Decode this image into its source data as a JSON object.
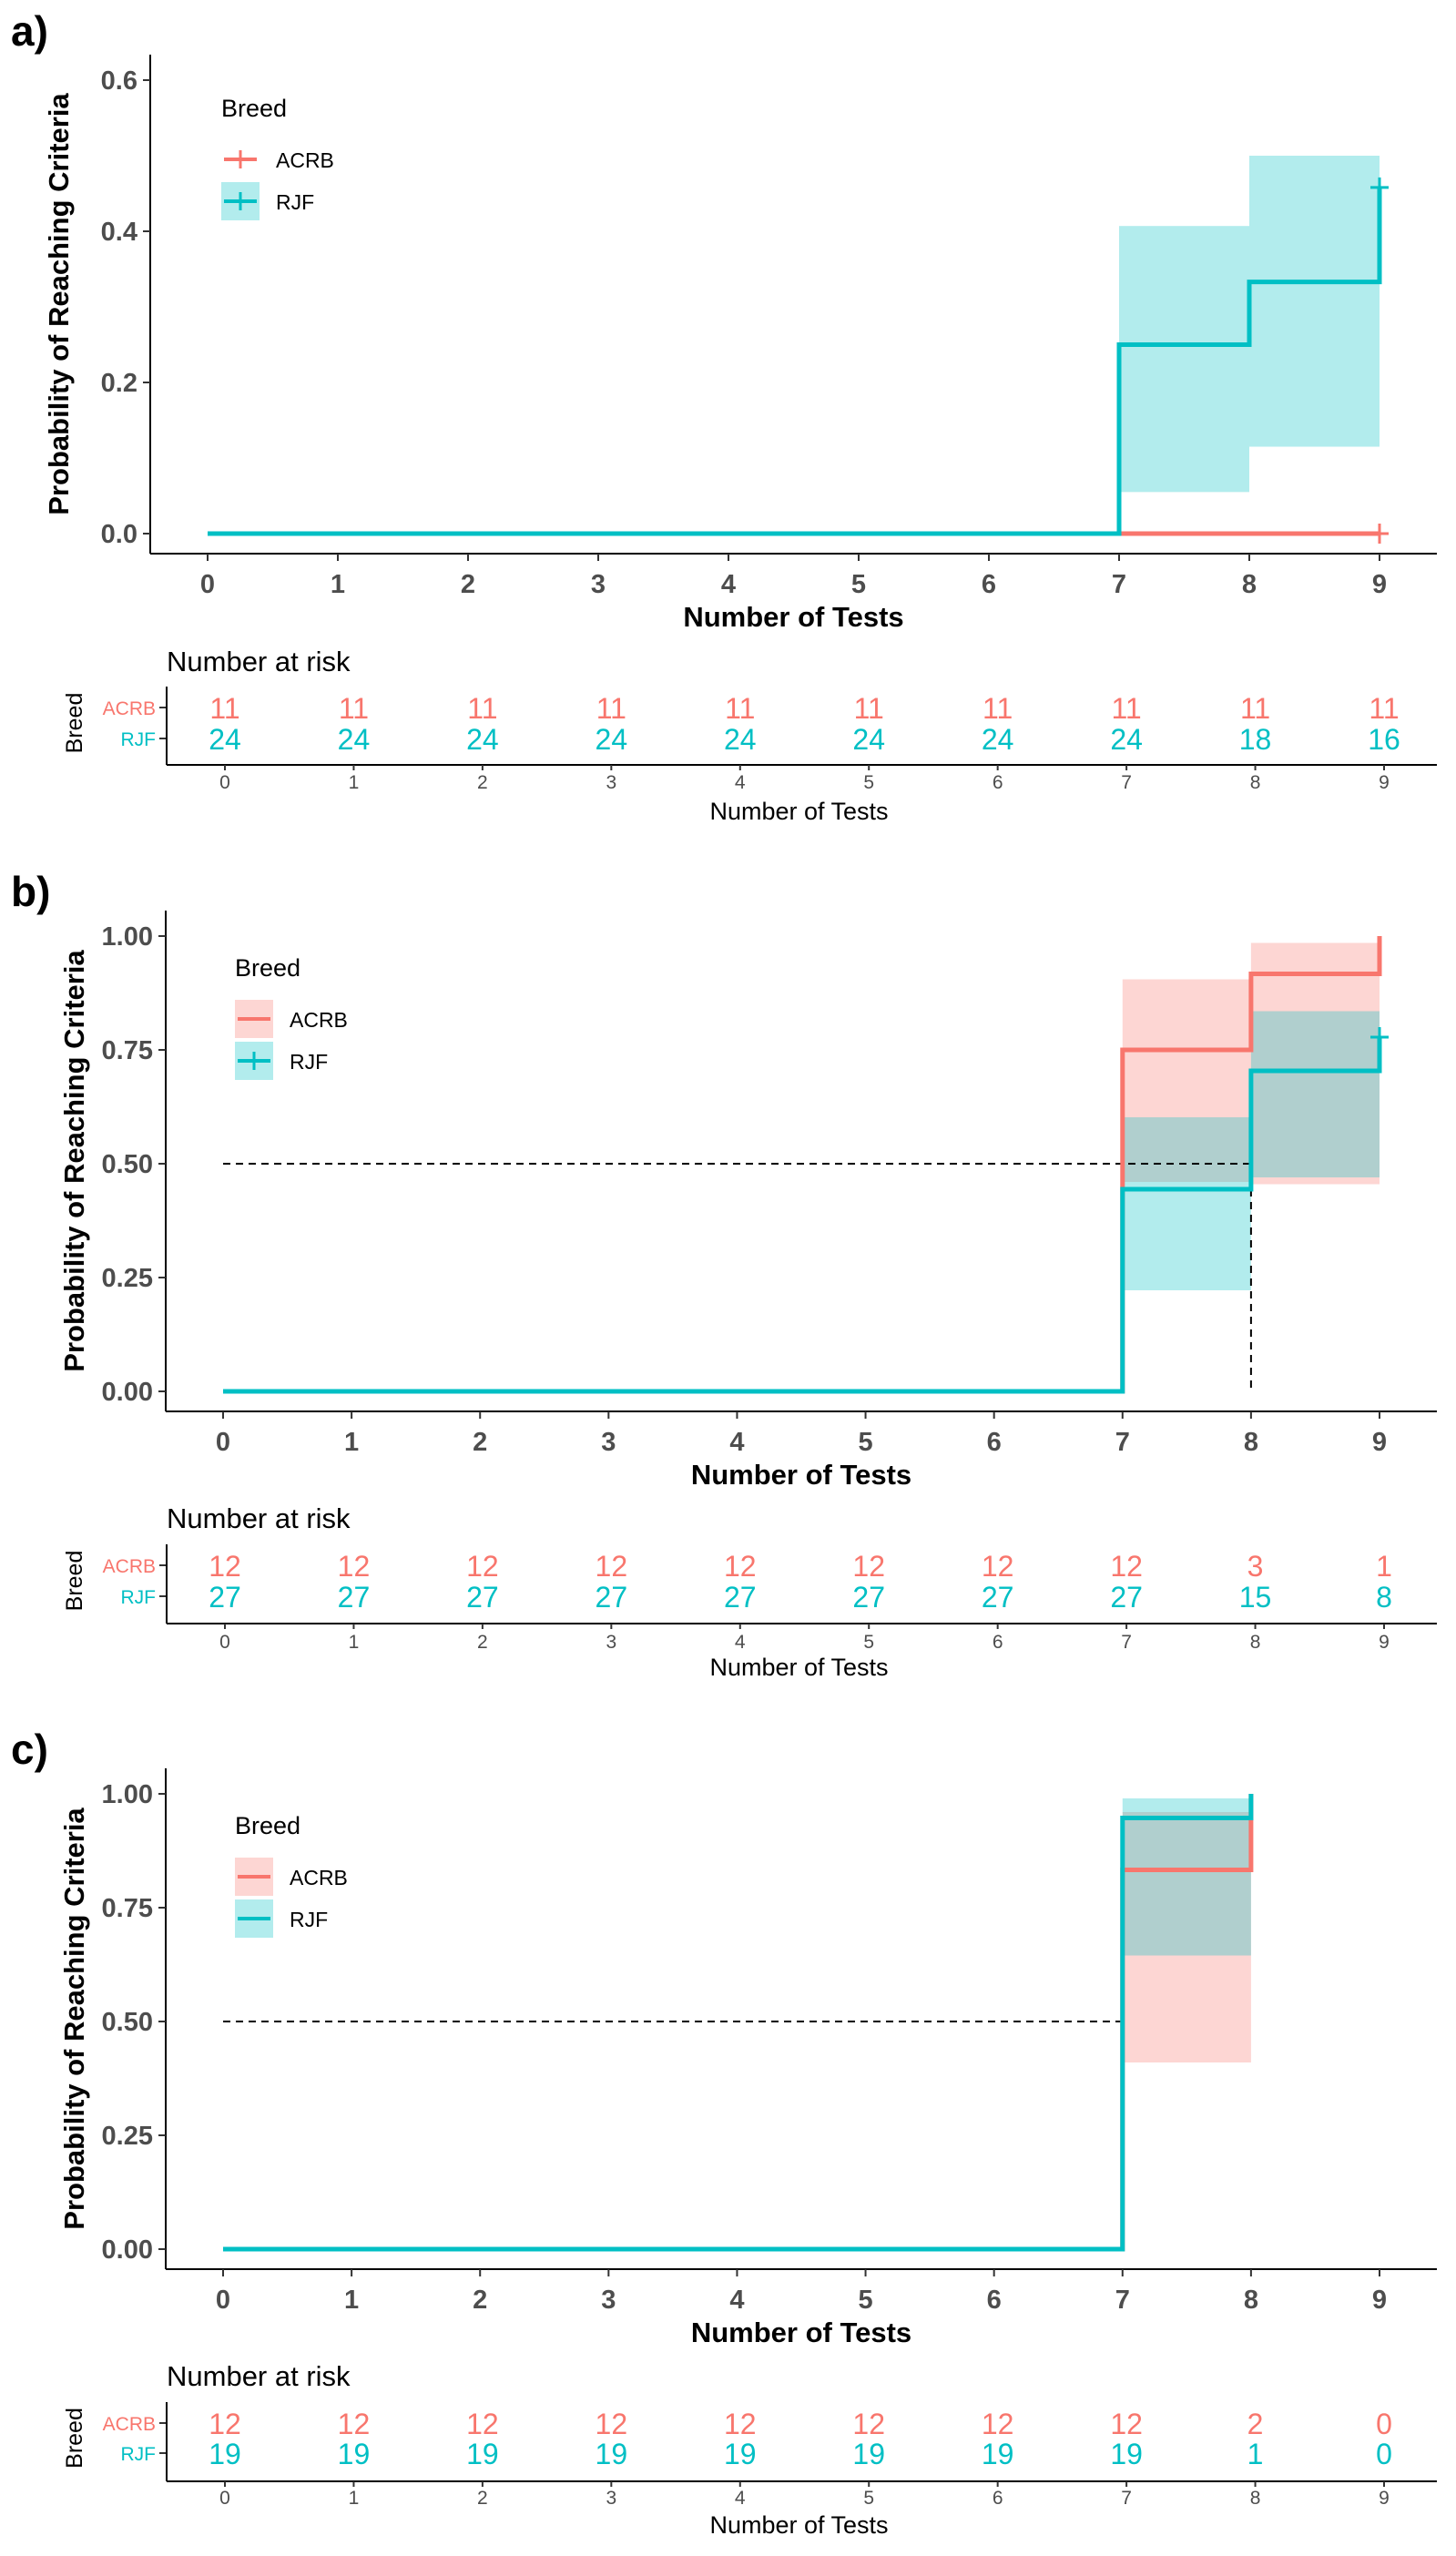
{
  "colors": {
    "acrb": "#F8766D",
    "rjf": "#00BFC4",
    "axis": "#000000",
    "tick": "#4d4d4d"
  },
  "chart_data": [
    {
      "panel": "a)",
      "type": "line",
      "subtype": "kaplan-meier-step",
      "ylabel": "Probability of Reaching Criteria",
      "xlabel": "Number of Tests",
      "xlim": [
        0,
        9
      ],
      "ylim": [
        0,
        0.6
      ],
      "yticks": [
        0.0,
        0.2,
        0.4,
        0.6
      ],
      "yticklabels": [
        "0.0",
        "0.2",
        "0.4",
        "0.6"
      ],
      "xticks": [
        0,
        1,
        2,
        3,
        4,
        5,
        6,
        7,
        8,
        9
      ],
      "legend_title": "Breed",
      "legend_position": "top-left",
      "median_line": null,
      "series": [
        {
          "name": "ACRB",
          "color_key": "acrb",
          "steps": [
            [
              0,
              0
            ],
            [
              7,
              0
            ],
            [
              8,
              0
            ],
            [
              9,
              0
            ]
          ],
          "end_x": 9,
          "censor": [
            [
              9,
              0
            ]
          ],
          "ci": []
        },
        {
          "name": "RJF",
          "color_key": "rjf",
          "steps": [
            [
              0,
              0
            ],
            [
              7,
              0.25
            ],
            [
              8,
              0.333
            ],
            [
              9,
              0.458
            ]
          ],
          "end_x": 9,
          "censor": [
            [
              9,
              0.458
            ]
          ],
          "ci": [
            [
              7,
              8,
              0.055,
              0.407
            ],
            [
              8,
              9,
              0.115,
              0.5
            ]
          ]
        }
      ],
      "risk_table": {
        "title": "Number at risk",
        "ylabel": "Breed",
        "xlabel": "Number of Tests",
        "strata": [
          "ACRB",
          "RJF"
        ],
        "acrb": [
          "11",
          "11",
          "11",
          "11",
          "11",
          "11",
          "11",
          "11",
          "11",
          "11"
        ],
        "rjf": [
          "24",
          "24",
          "24",
          "24",
          "24",
          "24",
          "24",
          "24",
          "18",
          "16"
        ]
      }
    },
    {
      "panel": "b)",
      "type": "line",
      "subtype": "kaplan-meier-step",
      "ylabel": "Probability of Reaching Criteria",
      "xlabel": "Number of Tests",
      "xlim": [
        0,
        9
      ],
      "ylim": [
        0,
        1.0
      ],
      "yticks": [
        0,
        0.25,
        0.5,
        0.75,
        1.0
      ],
      "yticklabels": [
        "0.00",
        "0.25",
        "0.50",
        "0.75",
        "1.00"
      ],
      "xticks": [
        0,
        1,
        2,
        3,
        4,
        5,
        6,
        7,
        8,
        9
      ],
      "legend_title": "Breed",
      "legend_position": "top-left",
      "median_line": {
        "y": 0.5,
        "x_end": 8,
        "drops": [
          7,
          8
        ]
      },
      "series": [
        {
          "name": "ACRB",
          "color_key": "acrb",
          "steps": [
            [
              0,
              0
            ],
            [
              7,
              0.75
            ],
            [
              8,
              0.917
            ],
            [
              9,
              1.0
            ]
          ],
          "end_x": 9,
          "censor": [],
          "ci": [
            [
              7,
              8,
              0.46,
              0.905
            ],
            [
              8,
              9,
              0.455,
              0.985
            ]
          ]
        },
        {
          "name": "RJF",
          "color_key": "rjf",
          "steps": [
            [
              0,
              0
            ],
            [
              7,
              0.444
            ],
            [
              8,
              0.704
            ],
            [
              9,
              0.778
            ]
          ],
          "end_x": 9,
          "censor": [
            [
              9,
              0.778
            ]
          ],
          "ci": [
            [
              7,
              8,
              0.222,
              0.602
            ],
            [
              8,
              9,
              0.47,
              0.835
            ]
          ]
        }
      ],
      "risk_table": {
        "title": "Number at risk",
        "ylabel": "Breed",
        "xlabel": "Number of Tests",
        "strata": [
          "ACRB",
          "RJF"
        ],
        "acrb": [
          "12",
          "12",
          "12",
          "12",
          "12",
          "12",
          "12",
          "12",
          "3",
          "1"
        ],
        "rjf": [
          "27",
          "27",
          "27",
          "27",
          "27",
          "27",
          "27",
          "27",
          "15",
          "8"
        ]
      }
    },
    {
      "panel": "c)",
      "type": "line",
      "subtype": "kaplan-meier-step",
      "ylabel": "Probability of Reaching Criteria",
      "xlabel": "Number of Tests",
      "xlim": [
        0,
        9
      ],
      "ylim": [
        0,
        1.0
      ],
      "yticks": [
        0,
        0.25,
        0.5,
        0.75,
        1.0
      ],
      "yticklabels": [
        "0.00",
        "0.25",
        "0.50",
        "0.75",
        "1.00"
      ],
      "xticks": [
        0,
        1,
        2,
        3,
        4,
        5,
        6,
        7,
        8,
        9
      ],
      "legend_title": "Breed",
      "legend_position": "top-left",
      "median_line": {
        "y": 0.5,
        "x_end": 7,
        "drops": [
          7
        ]
      },
      "series": [
        {
          "name": "ACRB",
          "color_key": "acrb",
          "steps": [
            [
              0,
              0
            ],
            [
              7,
              0.833
            ],
            [
              8,
              1.0
            ]
          ],
          "end_x": 8,
          "censor": [],
          "ci": [
            [
              7,
              8,
              0.41,
              0.96
            ]
          ]
        },
        {
          "name": "RJF",
          "color_key": "rjf",
          "steps": [
            [
              0,
              0
            ],
            [
              7,
              0.947
            ],
            [
              8,
              1.0
            ]
          ],
          "end_x": 8,
          "censor": [],
          "ci": [
            [
              7,
              8,
              0.645,
              0.99
            ]
          ]
        }
      ],
      "risk_table": {
        "title": "Number at risk",
        "ylabel": "Breed",
        "xlabel": "Number of Tests",
        "strata": [
          "ACRB",
          "RJF"
        ],
        "acrb": [
          "12",
          "12",
          "12",
          "12",
          "12",
          "12",
          "12",
          "12",
          "2",
          "0"
        ],
        "rjf": [
          "19",
          "19",
          "19",
          "19",
          "19",
          "19",
          "19",
          "19",
          "1",
          "0"
        ]
      }
    }
  ]
}
